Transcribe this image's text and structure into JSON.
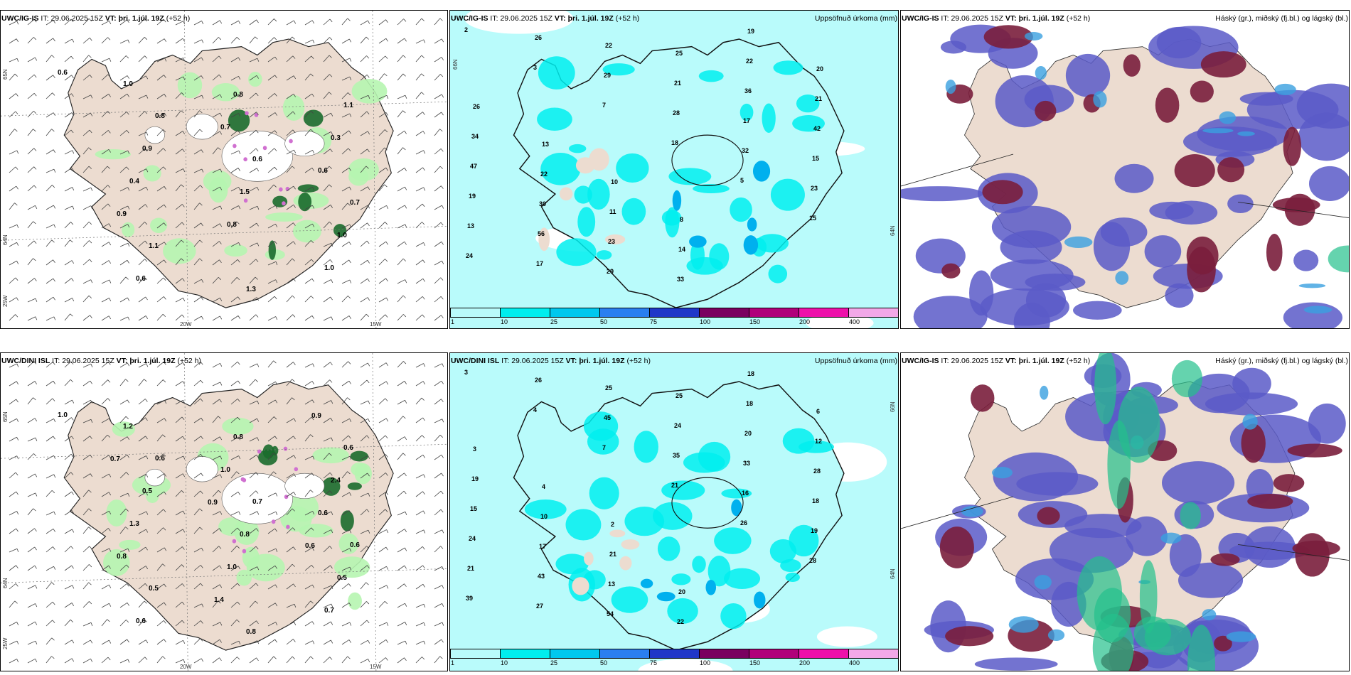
{
  "rows": [
    {
      "model": "UWC/IG-IS",
      "panels": [
        {
          "model": "UWC/IG-IS",
          "it_label": "IT:",
          "it": "29.06.2025 15Z",
          "vt_label": "VT:",
          "vt": "þri. 1.júl. 19Z",
          "lead": "(+52 h)",
          "right": "",
          "kind": "wind"
        },
        {
          "model": "UWC/IG-IS",
          "it_label": "IT:",
          "it": "29.06.2025 15Z",
          "vt_label": "VT:",
          "vt": "þri. 1.júl. 19Z",
          "lead": "(+52 h)",
          "right": "Uppsöfnuð úrkoma (mm)",
          "kind": "precip"
        },
        {
          "model": "UWC/IG-IS",
          "it_label": "IT:",
          "it": "29.06.2025 15Z",
          "vt_label": "VT:",
          "vt": "þri. 1.júl. 19Z",
          "lead": "(+52 h)",
          "right": "Háský (gr.), miðský (fj.bl.) og lágský (bl.)",
          "kind": "cloud"
        }
      ],
      "wind_labels": [
        "0.6",
        "0.8",
        "0.6",
        "0.7",
        "1.1",
        "1.3",
        "1.1",
        "0.9",
        "1.5",
        "1.0",
        "0.6",
        "0.8",
        "0.3",
        "0.4",
        "0.8",
        "1.0",
        "1.0",
        "0.7",
        "0.6",
        "0.9"
      ],
      "precip_labels": [
        "2",
        "3",
        "7",
        "18",
        "5",
        "15",
        "24",
        "26",
        "29",
        "28",
        "32",
        "23",
        "13",
        "17",
        "22",
        "21",
        "17",
        "15",
        "19",
        "56",
        "29",
        "25",
        "36",
        "42",
        "47",
        "30",
        "23",
        "33",
        "22",
        "21",
        "34",
        "22",
        "11",
        "14",
        "19",
        "20",
        "26",
        "13",
        "10",
        "8"
      ]
    },
    {
      "model": "UWC/DINI ISL",
      "panels": [
        {
          "model": "UWC/DINI ISL",
          "it_label": "IT:",
          "it": "29.06.2025 15Z",
          "vt_label": "VT:",
          "vt": "þri. 1.júl. 19Z",
          "lead": "(+52 h)",
          "right": "",
          "kind": "wind"
        },
        {
          "model": "UWC/DINI ISL",
          "it_label": "IT:",
          "it": "29.06.2025 15Z",
          "vt_label": "VT:",
          "vt": "þri. 1.júl. 19Z",
          "lead": "(+52 h)",
          "right": "Uppsöfnuð úrkoma (mm)",
          "kind": "precip"
        },
        {
          "model": "UWC/IG-IS",
          "it_label": "IT:",
          "it": "29.06.2025 15Z",
          "vt_label": "VT:",
          "vt": "þri. 1.júl. 19Z",
          "lead": "(+52 h)",
          "right": "Háský (gr.), miðský (fj.bl.) og lágský (bl.)",
          "kind": "cloud"
        }
      ],
      "wind_labels": [
        "1.0",
        "0.6",
        "0.7",
        "0.6",
        "0.5",
        "0.8",
        "0.6",
        "0.5",
        "0.8",
        "0.5",
        "0.6",
        "0.8",
        "2.4",
        "1.3",
        "1.0",
        "0.7",
        "1.2",
        "1.0",
        "0.6",
        "0.8",
        "1.4",
        "0.9",
        "0.7",
        "0.9",
        "0.6"
      ],
      "precip_labels": [
        "3",
        "4",
        "7",
        "21",
        "26",
        "28",
        "39",
        "26",
        "45",
        "35",
        "16",
        "19",
        "21",
        "27",
        "25",
        "24",
        "33",
        "18",
        "24",
        "43",
        "54",
        "25",
        "20",
        "28",
        "15",
        "17",
        "13",
        "22",
        "18",
        "12",
        "19",
        "10",
        "21",
        "20",
        "18",
        "6",
        "3",
        "4",
        "2"
      ]
    }
  ],
  "colorbar": {
    "ticks": [
      "1",
      "10",
      "25",
      "50",
      "75",
      "100",
      "150",
      "200",
      "400"
    ],
    "colors": [
      "#b9fbfb",
      "#00eeee",
      "#00c8ee",
      "#2a7ff0",
      "#1f37c8",
      "#7a0060",
      "#b0007a",
      "#ee10aa",
      "#f2a8e8"
    ]
  },
  "axes": {
    "wind_lat": [
      "65N",
      "64N",
      "25W"
    ],
    "wind_lon": [
      "20W",
      "15W"
    ],
    "precip_lat": [
      "66N",
      "64N"
    ]
  },
  "colors": {
    "land": "#ecdcd0",
    "sea_wind": "#ffffff",
    "sea_precip": "#b9fbfb",
    "precip_med": "#00eeee",
    "green_light": "#b6f5b0",
    "green_dark": "#1b6b2c",
    "cloud_high": "#7a1e3c",
    "cloud_mid": "#5a5ac8",
    "cloud_low": "#3aa0e0",
    "cloud_green": "#24c08c"
  }
}
